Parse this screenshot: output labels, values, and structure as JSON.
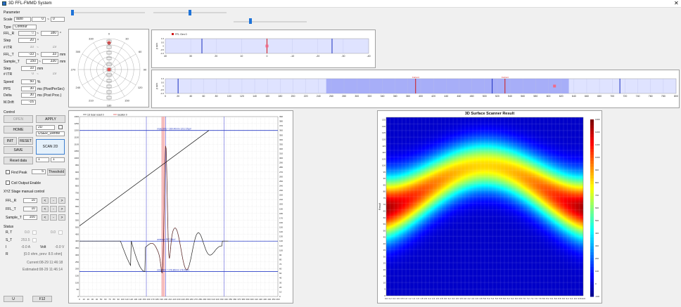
{
  "window": {
    "title": "3D FFL-FMMD System",
    "close_glyph": "✕"
  },
  "params": {
    "section": "Parameter",
    "scale_label": "Scale",
    "scale_value": "auto",
    "scale_min": "0",
    "scale_tilde": "~",
    "scale_max": "0",
    "type_label": "Type",
    "type_value": "Contour",
    "ffl_r_label": "FFL_R",
    "ffl_r_from": "0",
    "ffl_r_to": "180",
    "ffl_r_unit": "°",
    "step1_label": "Step",
    "step1_value": "20",
    "step1_unit": "°",
    "itr1_label": "# ITR",
    "itr1_from": "10",
    "itr1_to": "19",
    "ffl_t_label": "FFL_T",
    "ffl_t_from": "-33",
    "ffl_t_to": "33",
    "ffl_t_unit": "mm",
    "sample_t_label": "Sample_T",
    "sample_t_from": "150",
    "sample_t_to": "330",
    "sample_t_unit": "mm",
    "step2_label": "Step",
    "step2_value": "10",
    "step2_unit": "mm",
    "itr2_label": "# ITR",
    "itr2_from": "0",
    "itr2_to": "19",
    "speed_label": "Speed",
    "speed_value": "50",
    "speed_unit": "%",
    "pps_label": "PPS",
    "pps_value": "30",
    "pps_unit": "ms (PixelPerSec)",
    "delta_label": "Delta",
    "delta_value": "30",
    "delta_unit": "ms (Post Proc.)",
    "mdrift_label": "M.Drift",
    "mdrift_value": "-16"
  },
  "control": {
    "section": "Control",
    "open": "OPEN",
    "apply": "APPLY",
    "home": "HOME",
    "mode_value": "2D",
    "user_define": "USER_Define",
    "init": "INIT",
    "reset": "RESET",
    "save": "SAVE",
    "scan2d": "SCAN 2D",
    "reset_data": "Reset data",
    "sel1": "1",
    "sel2": "1",
    "find_peak": "Find Peak",
    "find_peak_value": "5",
    "threshold": "Threshold",
    "coil_output": "Coil Output Enable"
  },
  "manual": {
    "section": "XYZ Stage manual control",
    "rows": [
      {
        "label": "FFL_R",
        "value": "10"
      },
      {
        "label": "FFL_T",
        "value": "10"
      },
      {
        "label": "Sample_T",
        "value": "100"
      }
    ],
    "lt": "<",
    "dash": "-",
    "gt": ">"
  },
  "status": {
    "section": "Status",
    "rt_label": "R, T",
    "rt_v1": "0.0",
    "rt_v2": "0.0",
    "st_label": "S_T",
    "st_v": "253.5",
    "i_label": "I",
    "i_v": "-0.0 A",
    "volt_label": "Volt",
    "volt_v": "-0.0 V",
    "r_label": "R",
    "r_v": "[0.0 ohm, prev: 8.5 ohm]",
    "current": "Current:08-29 11:46:18",
    "estimated": "Estimated:08-29 11:46:14"
  },
  "footer": {
    "u": "U",
    "f12": "F12"
  },
  "polar": {
    "angles": [
      "0",
      "30",
      "60",
      "90",
      "120",
      "150",
      "180",
      "210",
      "240",
      "270",
      "300",
      "330"
    ]
  },
  "strip1": {
    "legend": "FFL Gen 0",
    "ylabel": "y axis",
    "ticks": [
      "40",
      "30",
      "20",
      "10",
      "0",
      "-10",
      "-20",
      "-30",
      "-40"
    ],
    "yticks": [
      "1.0",
      "0.5",
      "0",
      "-0.5",
      "-1.0"
    ]
  },
  "strip2": {
    "ylabel": "y axis",
    "ticks": [
      "0",
      "20",
      "40",
      "60",
      "80",
      "100",
      "120",
      "140",
      "160",
      "180",
      "200",
      "220",
      "240",
      "260",
      "280",
      "300",
      "320",
      "340",
      "360",
      "380",
      "400",
      "420",
      "440",
      "460",
      "480",
      "500",
      "520",
      "540",
      "560",
      "580",
      "600",
      "620",
      "640",
      "660",
      "680",
      "700",
      "720",
      "740",
      "760",
      "780",
      "800"
    ],
    "yticks": [
      "1.0",
      "0.5",
      "0",
      "-0.5",
      "-1.0"
    ],
    "marker1": "Current",
    "marker2": "Current"
  },
  "signal_chart": {
    "legend": [
      "1D Scan result 0",
      "location 0"
    ],
    "annot_max": "max(180) = 260.40mm 1212.25μV",
    "annot_avg": "average 397.25μV",
    "annot_min": "min(180) = 276.80mm 178.51μV",
    "xticks": [
      "0",
      "10",
      "20",
      "30",
      "40",
      "50",
      "60",
      "70",
      "80",
      "90",
      "100",
      "110",
      "120",
      "130",
      "140",
      "150",
      "160",
      "170",
      "180",
      "190",
      "200",
      "210",
      "220",
      "230",
      "240",
      "250",
      "260",
      "270",
      "280",
      "290",
      "300",
      "310",
      "320",
      "330",
      "340",
      "350",
      "360",
      "370",
      "380",
      "390",
      "400",
      "410",
      "420",
      "430",
      "440",
      "450",
      "460"
    ],
    "yticks_left": [
      "0",
      "50",
      "100",
      "150",
      "200",
      "250",
      "300",
      "350",
      "400",
      "450",
      "500",
      "550",
      "600",
      "650",
      "700",
      "750",
      "800",
      "850",
      "900",
      "950",
      "1000",
      "1050",
      "1100",
      "1150",
      "1200",
      "1250",
      "1300"
    ],
    "yticks_right": [
      "0",
      "10",
      "20",
      "30",
      "40",
      "50",
      "60",
      "70",
      "80",
      "90",
      "100",
      "110",
      "120",
      "130",
      "140",
      "150",
      "160",
      "170",
      "180",
      "190",
      "200",
      "210",
      "220",
      "230",
      "240",
      "250",
      "260",
      "270",
      "280",
      "290",
      "300",
      "310",
      "320",
      "330",
      "340",
      "350",
      "360",
      "370",
      "380",
      "390"
    ]
  },
  "chart_data": {
    "type": "heatmap",
    "title": "3D Surface Scanner Result",
    "ylabel": "Result",
    "xticks": [
      "0.0",
      "0.2",
      "0.4",
      "0.6",
      "0.8",
      "1.0",
      "1.2",
      "1.4",
      "1.6",
      "1.8",
      "2.0",
      "2.2",
      "2.4",
      "2.6",
      "2.8",
      "3.0",
      "3.2",
      "3.4",
      "3.6",
      "3.8",
      "4.0",
      "4.2",
      "4.4",
      "4.6",
      "4.8",
      "5.0",
      "5.2",
      "5.4",
      "5.6",
      "5.8",
      "6.0",
      "6.2",
      "6.4",
      "6.6",
      "6.8",
      "7.0",
      "7.2",
      "7.4",
      "7.6",
      "7.8",
      "8.0",
      "8.2",
      "8.4",
      "8.6",
      "8.8",
      "9.0",
      "9.2",
      "9.4",
      "9.6",
      "9.8",
      "10.0"
    ],
    "yticks": [
      "0",
      "5",
      "10",
      "15",
      "20",
      "25",
      "30",
      "35",
      "40",
      "45",
      "50",
      "55",
      "60",
      "65",
      "70",
      "75",
      "80",
      "85",
      "90",
      "95",
      "100",
      "105",
      "110",
      "115",
      "120",
      "125",
      "130",
      "135"
    ],
    "colorbar_ticks": [
      "1300",
      "1200",
      "1100",
      "1000",
      "900",
      "800",
      "700",
      "600",
      "500",
      "400",
      "300",
      "200",
      "100",
      "0",
      "-100"
    ],
    "zlim": [
      -100,
      1300
    ],
    "ylim": [
      0,
      137
    ],
    "ridge": {
      "edge_y": 68,
      "center_y": 100,
      "peak_value": 1250
    }
  }
}
